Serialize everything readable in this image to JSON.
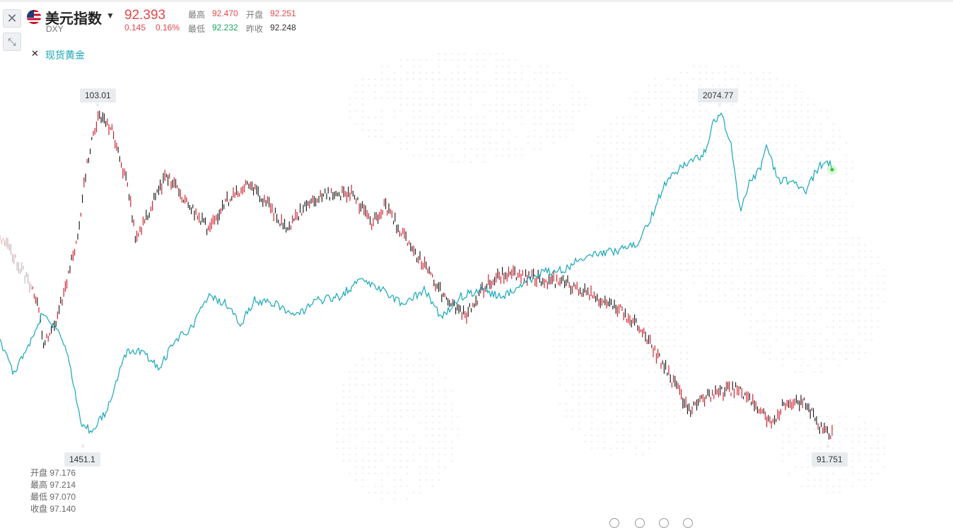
{
  "header": {
    "name": "美元指数",
    "code": "DXY",
    "price": "92.393",
    "change": "0.145",
    "change_pct": "0.16%",
    "high_label": "最高",
    "high": "92.470",
    "open_label": "开盘",
    "open": "92.251",
    "low_label": "最低",
    "low": "92.232",
    "prev_label": "昨收",
    "prev": "92.248"
  },
  "overlay": {
    "name": "现货黄金"
  },
  "chart_data": {
    "type": "line",
    "series": [
      {
        "name": "美元指数",
        "color": "#e5474b",
        "annotations": {
          "max": "103.01",
          "min": "91.751"
        }
      },
      {
        "name": "现货黄金",
        "color": "#16a7b7",
        "annotations": {
          "max": "2074.77",
          "min": "1451.1"
        }
      }
    ]
  },
  "tooltip": {
    "open": "开盘 97.176",
    "high": "最高 97.214",
    "low": "最低 97.070",
    "close": "收盘 97.140"
  },
  "colors": {
    "up": "#e5474b",
    "down": "#19a55d",
    "gold": "#16a7b7",
    "candle_dark": "#111111"
  }
}
